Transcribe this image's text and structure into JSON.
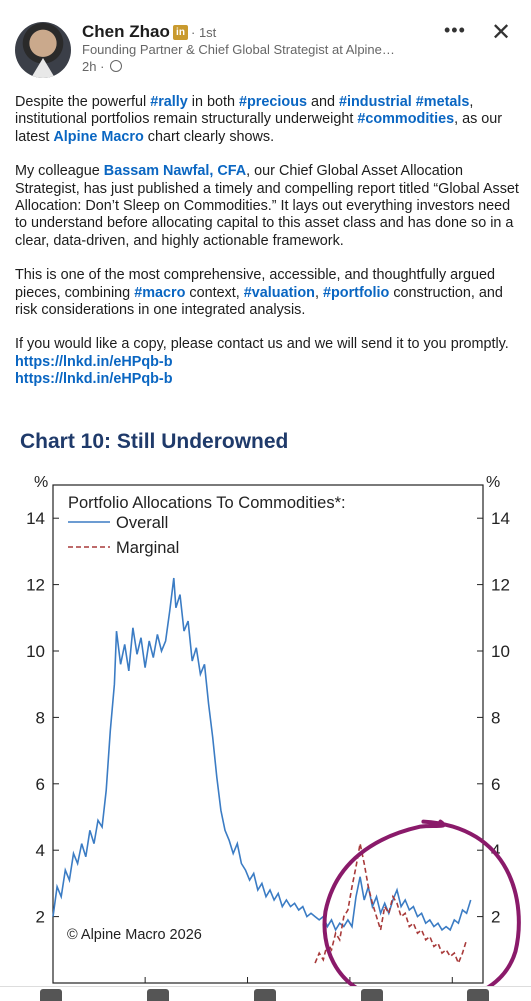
{
  "author": {
    "name": "Chen Zhao",
    "badge": "in",
    "degree": "· 1st",
    "headline": "Founding Partner & Chief Global Strategist at Alpine…",
    "time": "2h ·"
  },
  "post": {
    "p1": [
      {
        "t": "Despite the powerful ",
        "k": "text"
      },
      {
        "t": "#rally",
        "k": "tag"
      },
      {
        "t": " in both ",
        "k": "text"
      },
      {
        "t": "#precious",
        "k": "tag"
      },
      {
        "t": " and ",
        "k": "text"
      },
      {
        "t": "#industrial",
        "k": "tag"
      },
      {
        "t": " ",
        "k": "text"
      },
      {
        "t": "#metals",
        "k": "tag"
      },
      {
        "t": ", institutional portfolios remain structurally underweight ",
        "k": "text"
      },
      {
        "t": "#commodities",
        "k": "tag"
      },
      {
        "t": ", as our latest ",
        "k": "text"
      },
      {
        "t": "Alpine Macro",
        "k": "mention"
      },
      {
        "t": " chart clearly shows.",
        "k": "text"
      }
    ],
    "p2": [
      {
        "t": "My colleague ",
        "k": "text"
      },
      {
        "t": "Bassam Nawfal, CFA",
        "k": "mention"
      },
      {
        "t": ", our Chief Global Asset Allocation Strategist, has just published a timely and compelling report titled “Global Asset Allocation: Don’t Sleep on Commodities.” It lays out everything investors need to understand before allocating capital to this asset class and has done so in a clear, data-driven, and highly actionable framework.",
        "k": "text"
      }
    ],
    "p3": [
      {
        "t": "This is one of the most comprehensive, accessible, and thoughtfully argued pieces, combining ",
        "k": "text"
      },
      {
        "t": "#macro",
        "k": "tag"
      },
      {
        "t": " context, ",
        "k": "text"
      },
      {
        "t": "#valuation",
        "k": "tag"
      },
      {
        "t": ", ",
        "k": "text"
      },
      {
        "t": "#portfolio",
        "k": "tag"
      },
      {
        "t": " construction, and risk considerations in one integrated analysis.",
        "k": "text"
      }
    ],
    "p4": "If you would like a copy, please contact us and we will send it to you promptly.",
    "links": [
      "https://lnkd.in/eHPqb-b",
      "https://lnkd.in/eHPqb-b"
    ]
  },
  "chart_data": {
    "type": "line",
    "title": "Chart 10: Still Underowned",
    "legend_title": "Portfolio Allocations To Commodities*:",
    "ylabel_left": "%",
    "ylabel_right": "%",
    "ylim": [
      0,
      15
    ],
    "yticks": [
      2,
      4,
      6,
      8,
      10,
      12,
      14
    ],
    "xlim": [
      2005.5,
      2026.5
    ],
    "xticks": [
      2010,
      2015,
      2020,
      2025
    ],
    "copyright": "© Alpine Macro 2026",
    "legend_position": "top-left",
    "series": [
      {
        "name": "Overall",
        "color": "#3b7cc4",
        "dash": "solid",
        "points": [
          [
            2005.5,
            2.0
          ],
          [
            2005.7,
            2.9
          ],
          [
            2005.9,
            2.6
          ],
          [
            2006.1,
            3.4
          ],
          [
            2006.3,
            3.1
          ],
          [
            2006.5,
            3.9
          ],
          [
            2006.7,
            3.6
          ],
          [
            2006.9,
            4.2
          ],
          [
            2007.1,
            3.8
          ],
          [
            2007.3,
            4.6
          ],
          [
            2007.5,
            4.2
          ],
          [
            2007.7,
            4.9
          ],
          [
            2007.9,
            4.7
          ],
          [
            2008.1,
            5.8
          ],
          [
            2008.3,
            7.6
          ],
          [
            2008.5,
            9.0
          ],
          [
            2008.6,
            10.6
          ],
          [
            2008.8,
            9.6
          ],
          [
            2009.0,
            10.2
          ],
          [
            2009.2,
            9.4
          ],
          [
            2009.4,
            10.7
          ],
          [
            2009.6,
            9.9
          ],
          [
            2009.8,
            10.4
          ],
          [
            2010.0,
            9.5
          ],
          [
            2010.2,
            10.3
          ],
          [
            2010.4,
            9.8
          ],
          [
            2010.6,
            10.5
          ],
          [
            2010.8,
            10.0
          ],
          [
            2011.0,
            10.3
          ],
          [
            2011.2,
            11.2
          ],
          [
            2011.4,
            12.2
          ],
          [
            2011.5,
            11.3
          ],
          [
            2011.7,
            11.7
          ],
          [
            2011.9,
            10.6
          ],
          [
            2012.1,
            10.9
          ],
          [
            2012.3,
            9.7
          ],
          [
            2012.5,
            10.1
          ],
          [
            2012.7,
            9.3
          ],
          [
            2012.9,
            9.6
          ],
          [
            2013.1,
            8.4
          ],
          [
            2013.3,
            7.4
          ],
          [
            2013.5,
            6.2
          ],
          [
            2013.7,
            5.2
          ],
          [
            2013.9,
            4.6
          ],
          [
            2014.1,
            4.3
          ],
          [
            2014.3,
            3.9
          ],
          [
            2014.5,
            4.2
          ],
          [
            2014.7,
            3.6
          ],
          [
            2014.9,
            3.4
          ],
          [
            2015.1,
            3.1
          ],
          [
            2015.3,
            3.3
          ],
          [
            2015.5,
            2.8
          ],
          [
            2015.7,
            3.0
          ],
          [
            2015.9,
            2.6
          ],
          [
            2016.1,
            2.8
          ],
          [
            2016.3,
            2.5
          ],
          [
            2016.5,
            2.7
          ],
          [
            2016.7,
            2.3
          ],
          [
            2016.9,
            2.5
          ],
          [
            2017.1,
            2.3
          ],
          [
            2017.3,
            2.4
          ],
          [
            2017.5,
            2.2
          ],
          [
            2017.7,
            2.3
          ],
          [
            2017.9,
            2.0
          ],
          [
            2018.1,
            2.1
          ],
          [
            2018.3,
            2.0
          ],
          [
            2018.5,
            1.9
          ],
          [
            2018.7,
            2.0
          ],
          [
            2018.9,
            1.7
          ],
          [
            2019.1,
            1.9
          ],
          [
            2019.3,
            1.6
          ],
          [
            2019.5,
            1.8
          ],
          [
            2019.7,
            1.7
          ],
          [
            2019.9,
            1.9
          ],
          [
            2020.1,
            1.7
          ],
          [
            2020.3,
            2.6
          ],
          [
            2020.5,
            3.2
          ],
          [
            2020.7,
            2.5
          ],
          [
            2020.9,
            2.9
          ],
          [
            2021.1,
            2.3
          ],
          [
            2021.3,
            2.6
          ],
          [
            2021.5,
            2.1
          ],
          [
            2021.7,
            2.4
          ],
          [
            2021.9,
            2.1
          ],
          [
            2022.1,
            2.5
          ],
          [
            2022.3,
            2.8
          ],
          [
            2022.5,
            2.3
          ],
          [
            2022.7,
            2.5
          ],
          [
            2022.9,
            2.2
          ],
          [
            2023.1,
            2.3
          ],
          [
            2023.3,
            2.0
          ],
          [
            2023.5,
            2.1
          ],
          [
            2023.7,
            1.8
          ],
          [
            2023.9,
            1.9
          ],
          [
            2024.1,
            1.7
          ],
          [
            2024.3,
            1.8
          ],
          [
            2024.5,
            1.6
          ],
          [
            2024.7,
            1.7
          ],
          [
            2024.9,
            1.6
          ],
          [
            2025.1,
            1.9
          ],
          [
            2025.3,
            1.8
          ],
          [
            2025.5,
            2.2
          ],
          [
            2025.7,
            2.1
          ],
          [
            2025.9,
            2.5
          ]
        ]
      },
      {
        "name": "Marginal",
        "color": "#a83a3a",
        "dash": "dashed",
        "points": [
          [
            2018.3,
            0.6
          ],
          [
            2018.5,
            0.9
          ],
          [
            2018.7,
            0.7
          ],
          [
            2018.9,
            1.2
          ],
          [
            2019.1,
            1.0
          ],
          [
            2019.3,
            1.5
          ],
          [
            2019.5,
            1.3
          ],
          [
            2019.7,
            2.0
          ],
          [
            2019.9,
            2.2
          ],
          [
            2020.1,
            2.9
          ],
          [
            2020.3,
            3.5
          ],
          [
            2020.5,
            4.2
          ],
          [
            2020.7,
            3.6
          ],
          [
            2020.9,
            2.9
          ],
          [
            2021.1,
            2.4
          ],
          [
            2021.3,
            2.0
          ],
          [
            2021.5,
            1.6
          ],
          [
            2021.7,
            2.3
          ],
          [
            2021.9,
            2.1
          ],
          [
            2022.1,
            2.6
          ],
          [
            2022.3,
            2.4
          ],
          [
            2022.5,
            2.0
          ],
          [
            2022.7,
            2.1
          ],
          [
            2022.9,
            1.7
          ],
          [
            2023.1,
            1.8
          ],
          [
            2023.3,
            1.5
          ],
          [
            2023.5,
            1.6
          ],
          [
            2023.7,
            1.3
          ],
          [
            2023.9,
            1.4
          ],
          [
            2024.1,
            1.1
          ],
          [
            2024.3,
            1.2
          ],
          [
            2024.5,
            0.9
          ],
          [
            2024.7,
            1.0
          ],
          [
            2024.9,
            0.8
          ],
          [
            2025.1,
            0.9
          ],
          [
            2025.3,
            0.6
          ],
          [
            2025.5,
            0.9
          ],
          [
            2025.7,
            1.3
          ]
        ]
      }
    ],
    "annotation": {
      "shape": "hand-drawn-circle",
      "color": "#8a1a6a",
      "center": [
        2023.2,
        2.0
      ]
    }
  },
  "nav": [
    "home-icon",
    "video-icon",
    "network-icon",
    "notifications-icon",
    "jobs-icon"
  ]
}
